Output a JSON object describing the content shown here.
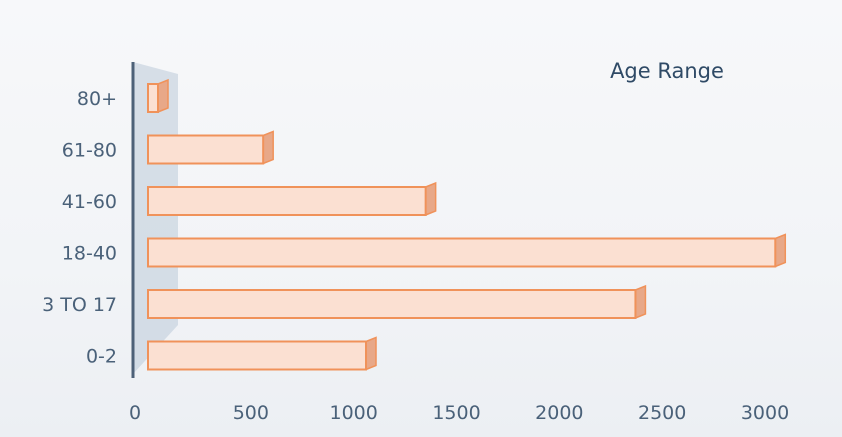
{
  "chart_data": {
    "type": "bar",
    "orientation": "horizontal",
    "title": "Age Range",
    "categories": [
      "80+",
      "61-80",
      "41-60",
      "18-40",
      "3 TO 17",
      "0-2"
    ],
    "values": [
      20,
      560,
      1350,
      3050,
      2370,
      1060
    ],
    "xlim": [
      0,
      3000
    ],
    "x_ticks": [
      "0",
      "500",
      "1000",
      "1500",
      "2000",
      "2500",
      "3000"
    ],
    "grid": false,
    "legend": "none",
    "colors": {
      "bar_fill": "#fbe0d2",
      "bar_stroke": "#f0925a",
      "bar_side": "#e8a888",
      "axis": "#4d6178",
      "wall": "#bccbd8"
    }
  }
}
